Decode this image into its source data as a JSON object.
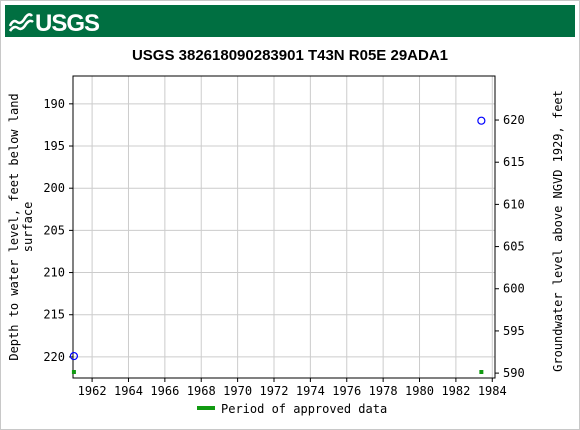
{
  "header": {
    "logo_text": "USGS",
    "brand_color": "#006f41"
  },
  "chart_data": {
    "type": "scatter",
    "title": "USGS 382618090283901 T43N R05E 29ADA1",
    "ylabel_left_line1": "Depth to water level, feet below land",
    "ylabel_left_line2": "surface",
    "ylabel_right": "Groundwater level above NGVD 1929, feet",
    "x_ticks": [
      "1962",
      "1964",
      "1966",
      "1968",
      "1970",
      "1972",
      "1974",
      "1976",
      "1978",
      "1980",
      "1982",
      "1984"
    ],
    "x_range": [
      1960.95,
      1984.15
    ],
    "y_left_ticks": [
      "190",
      "195",
      "200",
      "205",
      "210",
      "215",
      "220"
    ],
    "y_left_range": [
      186.7,
      222.5
    ],
    "y_right_ticks": [
      "620",
      "615",
      "610",
      "605",
      "600",
      "595",
      "590"
    ],
    "y_right_values": [
      620,
      615,
      610,
      605,
      600,
      595,
      590
    ],
    "grid": true,
    "series": [
      {
        "symbol": "open-circle",
        "color": "#0000ff",
        "points": [
          {
            "x": 1961.0,
            "y": 219.9
          },
          {
            "x": 1983.4,
            "y": 192.0
          }
        ]
      }
    ],
    "approved_periods": [
      {
        "x": 1961.0
      },
      {
        "x": 1983.4
      }
    ],
    "approved_color": "#119a11",
    "legend": {
      "label": "Period of approved data",
      "placement": "bottom-center"
    }
  }
}
